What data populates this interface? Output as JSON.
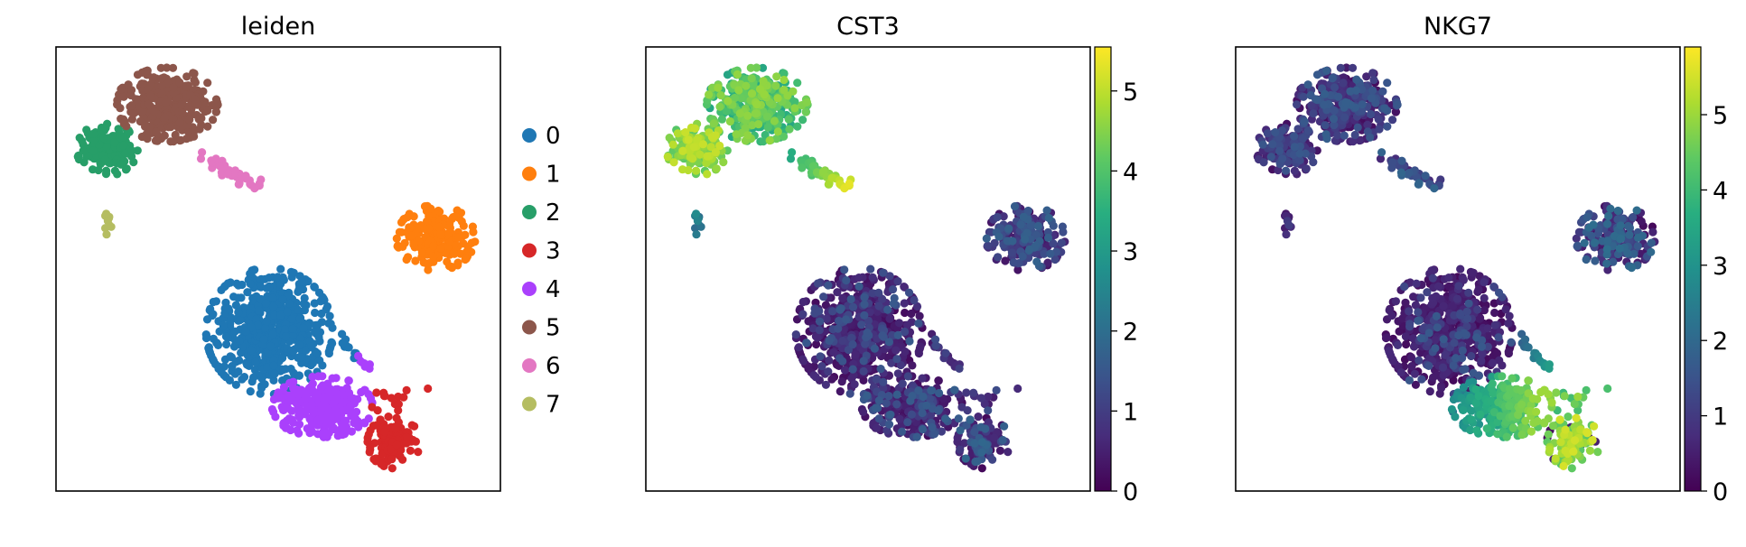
{
  "figure": {
    "panels": [
      {
        "title": "leiden",
        "kind": "categorical"
      },
      {
        "title": "CST3",
        "kind": "continuous"
      },
      {
        "title": "NKG7",
        "kind": "continuous"
      }
    ]
  },
  "chart_data": [
    {
      "type": "scatter",
      "title": "leiden",
      "xlabel": "",
      "ylabel": "",
      "axis_ticks": false,
      "legend": {
        "placement": "right",
        "entries": [
          {
            "label": "0",
            "color": "#1f77b4"
          },
          {
            "label": "1",
            "color": "#ff7f0e"
          },
          {
            "label": "2",
            "color": "#279e68"
          },
          {
            "label": "3",
            "color": "#d62728"
          },
          {
            "label": "4",
            "color": "#aa40fc"
          },
          {
            "label": "5",
            "color": "#8c564b"
          },
          {
            "label": "6",
            "color": "#e377c2"
          },
          {
            "label": "7",
            "color": "#b5bd61"
          }
        ]
      }
    },
    {
      "type": "scatter",
      "title": "CST3",
      "xlabel": "",
      "ylabel": "",
      "axis_ticks": false,
      "colormap": "viridis",
      "colorbar": {
        "range": [
          0,
          5.55
        ],
        "ticks": [
          "0",
          "1",
          "2",
          "3",
          "4",
          "5"
        ]
      }
    },
    {
      "type": "scatter",
      "title": "NKG7",
      "xlabel": "",
      "ylabel": "",
      "axis_ticks": false,
      "colormap": "viridis",
      "colorbar": {
        "range": [
          0,
          5.9
        ],
        "ticks": [
          "0",
          "1",
          "2",
          "3",
          "4",
          "5"
        ]
      }
    }
  ]
}
